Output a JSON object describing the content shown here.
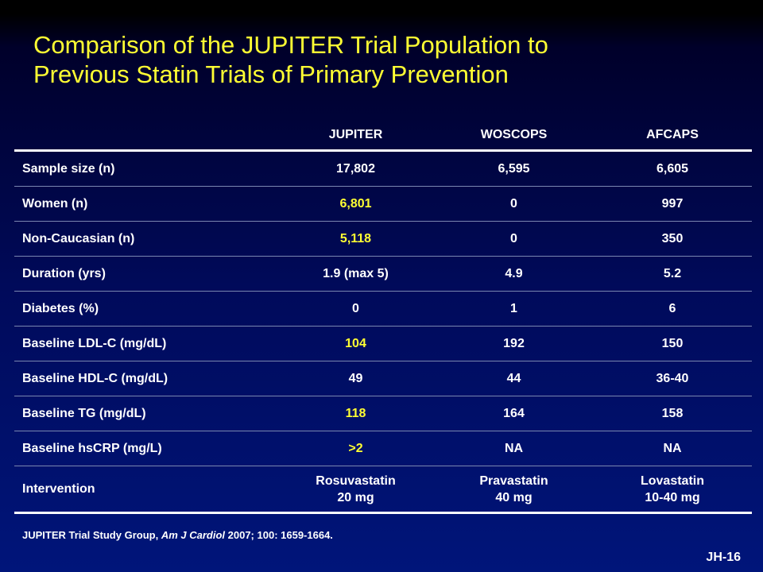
{
  "title": {
    "line1": "Comparison of the JUPITER Trial Population to",
    "line2": "Previous Statin Trials of Primary Prevention"
  },
  "table": {
    "headers": [
      "",
      "JUPITER",
      "WOSCOPS",
      "AFCAPS"
    ],
    "rows": [
      {
        "label": "Sample size (n)",
        "jupiter": "17,802",
        "woscops": "6,595",
        "afcaps": "6,605",
        "jupiter_highlight": false
      },
      {
        "label": "Women (n)",
        "jupiter": "6,801",
        "woscops": "0",
        "afcaps": "997",
        "jupiter_highlight": true
      },
      {
        "label": "Non-Caucasian (n)",
        "jupiter": "5,118",
        "woscops": "0",
        "afcaps": "350",
        "jupiter_highlight": true
      },
      {
        "label": "Duration (yrs)",
        "jupiter": "1.9 (max 5)",
        "woscops": "4.9",
        "afcaps": "5.2",
        "jupiter_highlight": false
      },
      {
        "label": "Diabetes (%)",
        "jupiter": "0",
        "woscops": "1",
        "afcaps": "6",
        "jupiter_highlight": false
      },
      {
        "label": "Baseline LDL-C  (mg/dL)",
        "jupiter": "104",
        "woscops": "192",
        "afcaps": "150",
        "jupiter_highlight": true
      },
      {
        "label": "Baseline HDL-C (mg/dL)",
        "jupiter": "49",
        "woscops": "44",
        "afcaps": "36-40",
        "jupiter_highlight": false
      },
      {
        "label": "Baseline TG (mg/dL)",
        "jupiter": "118",
        "woscops": "164",
        "afcaps": "158",
        "jupiter_highlight": true
      },
      {
        "label": "Baseline hsCRP (mg/L)",
        "jupiter": ">2",
        "woscops": "NA",
        "afcaps": "NA",
        "jupiter_highlight": true
      }
    ],
    "intervention": {
      "label": "Intervention",
      "jupiter": [
        "Rosuvastatin",
        "20 mg"
      ],
      "woscops": [
        "Pravastatin",
        "40 mg"
      ],
      "afcaps": [
        "Lovastatin",
        "10-40 mg"
      ]
    }
  },
  "footnote": {
    "authors": "JUPITER Trial Study Group,",
    "journal": "Am J Cardiol",
    "citation": "2007; 100: 1659-1664."
  },
  "slide_code": "JH-16",
  "colors": {
    "title": "#ffff33",
    "highlight": "#ffff33",
    "text": "#ffffff",
    "background_top": "#000000",
    "background_bottom": "#00157a"
  }
}
